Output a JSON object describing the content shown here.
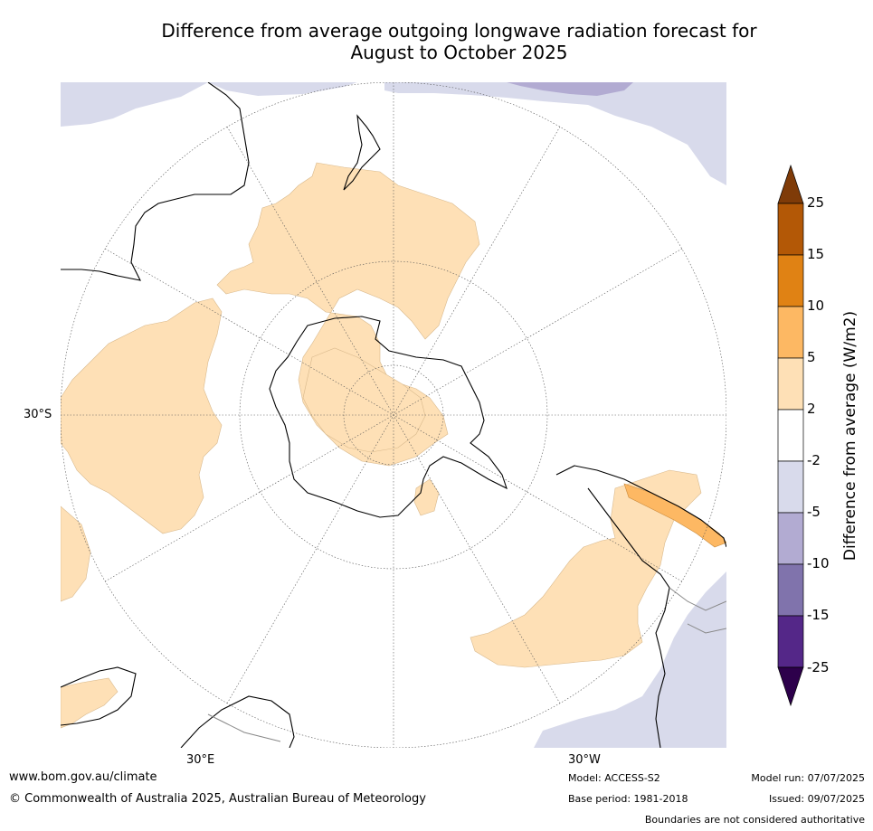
{
  "title_line1": "Difference from average outgoing longwave radiation forecast for",
  "title_line2": "August to October 2025",
  "map": {
    "lat_label": "30°S",
    "lon_labels": [
      "30°E",
      "30°W"
    ]
  },
  "colorbar": {
    "label": "Difference from average (W/m2)",
    "ticks": [
      "25",
      "15",
      "10",
      "5",
      "2",
      "-2",
      "-5",
      "-10",
      "-15",
      "-25"
    ],
    "colors": [
      "#7f3b08",
      "#b35806",
      "#e08214",
      "#fdb863",
      "#fee0b6",
      "#ffffff",
      "#d8daeb",
      "#b2abd2",
      "#8073ac",
      "#542788",
      "#2d004b"
    ]
  },
  "footer": {
    "url": "www.bom.gov.au/climate",
    "copyright": "© Commonwealth of Australia 2025, Australian Bureau of Meteorology",
    "model": "Model: ACCESS-S2",
    "base_period": "Base period: 1981-2018",
    "model_run": "Model run: 07/07/2025",
    "issued": "Issued: 09/07/2025",
    "disclaimer": "Boundaries are not considered authoritative"
  }
}
